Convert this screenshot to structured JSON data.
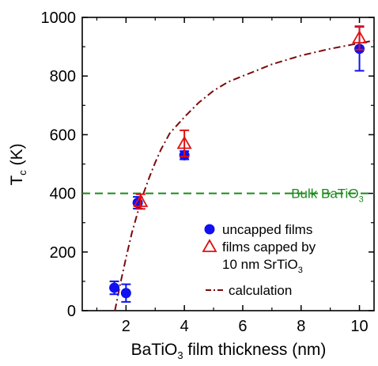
{
  "chart_data": {
    "type": "scatter",
    "xlabel": {
      "main": "BaTiO",
      "sub": "3",
      "rest": " film thickness (nm)"
    },
    "ylabel": {
      "main": "T",
      "sub": "c",
      "rest": " (K)"
    },
    "xlim": [
      0.5,
      10.5
    ],
    "ylim": [
      0,
      1000
    ],
    "xticks": [
      2,
      4,
      6,
      8,
      10
    ],
    "yticks": [
      0,
      200,
      400,
      600,
      800,
      1000
    ],
    "xtick_labels": [
      "2",
      "4",
      "6",
      "8",
      "10"
    ],
    "ytick_labels": [
      "0",
      "200",
      "400",
      "600",
      "800",
      "1000"
    ],
    "grid": false,
    "legend_position": "right",
    "series": [
      {
        "name": "uncapped films",
        "marker": "filled-circle",
        "color": "#1010f0",
        "points": [
          {
            "x": 1.6,
            "y": 78,
            "err": 22
          },
          {
            "x": 2.0,
            "y": 60,
            "err": 30
          },
          {
            "x": 2.4,
            "y": 368,
            "err": 20
          },
          {
            "x": 4.0,
            "y": 530,
            "err": 14
          },
          {
            "x": 10.0,
            "y": 893,
            "err": 75
          }
        ]
      },
      {
        "name": "films capped by 10 nm SrTiO3",
        "legend_lines": [
          {
            "main": "films capped by",
            "sub": ""
          },
          {
            "main": "10 nm SrTiO",
            "sub": "3"
          }
        ],
        "marker": "open-triangle",
        "color": "#e01010",
        "points": [
          {
            "x": 2.5,
            "y": 372,
            "err": 25
          },
          {
            "x": 4.0,
            "y": 570,
            "err": 45
          },
          {
            "x": 10.0,
            "y": 930,
            "err": 40
          }
        ]
      },
      {
        "name": "calculation",
        "style": "dash-dot",
        "color": "#7a0a0a",
        "x": [
          1.62,
          1.8,
          2.0,
          2.2,
          2.4,
          2.6,
          2.8,
          3.0,
          3.2,
          3.5,
          4.0,
          4.5,
          5.0,
          5.5,
          6.0,
          7.0,
          8.0,
          9.0,
          10.0,
          10.5
        ],
        "y": [
          0,
          90,
          180,
          265,
          335,
          400,
          455,
          505,
          550,
          605,
          660,
          710,
          750,
          780,
          800,
          840,
          870,
          893,
          912,
          921
        ]
      }
    ],
    "annotations": [
      {
        "label": {
          "main": "Bulk BaTiO",
          "sub": "3"
        },
        "y": 400,
        "style": "dashed",
        "color": "#1a8a1a"
      }
    ]
  }
}
